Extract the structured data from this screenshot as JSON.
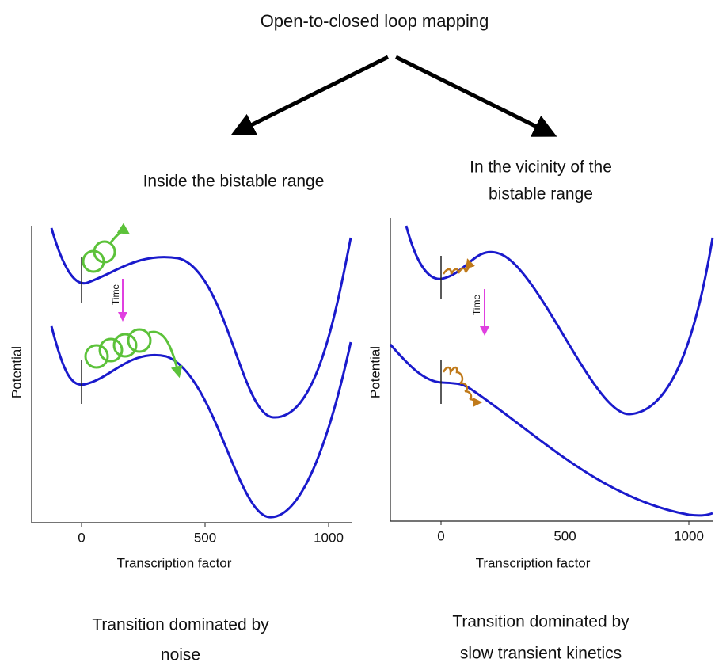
{
  "title": "Open-to-closed loop mapping",
  "panels": [
    {
      "heading": "Inside the bistable range",
      "y_label": "Potential",
      "x_label": "Transcription factor",
      "time_label": "Time",
      "xticks": [
        0,
        500,
        1000
      ],
      "caption": [
        "Transition dominated by",
        "noise"
      ]
    },
    {
      "heading": [
        "In the vicinity of the",
        "bistable range"
      ],
      "y_label": "Potential",
      "x_label": "Transcription factor",
      "time_label": "Time",
      "xticks": [
        0,
        500,
        1000
      ],
      "caption": [
        "Transition dominated by",
        "slow transient kinetics"
      ]
    }
  ]
}
